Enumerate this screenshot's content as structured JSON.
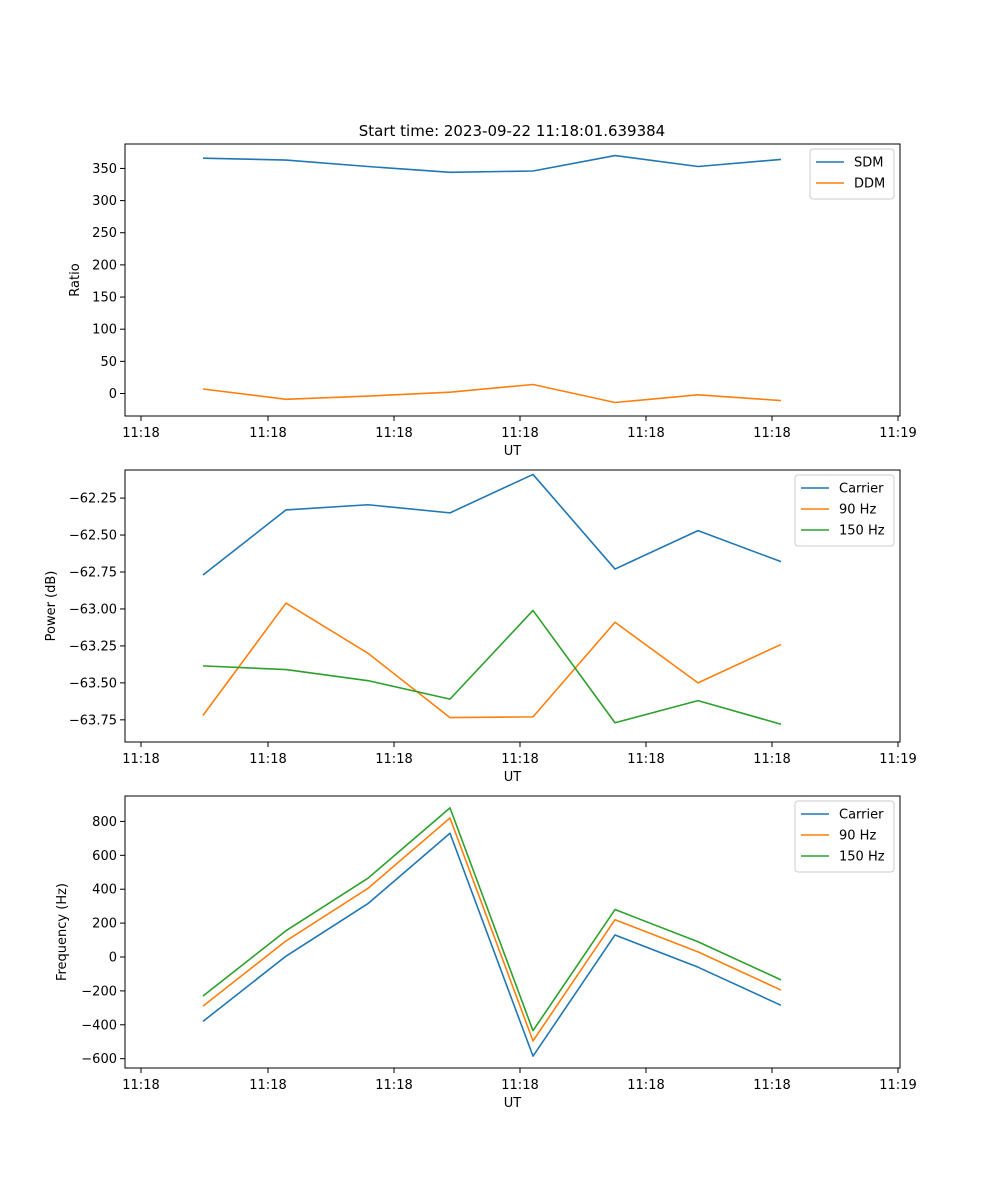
{
  "title": "Start time: 2023-09-22 11:18:01.639384",
  "chart_data": [
    {
      "type": "line",
      "title": "Start time: 2023-09-22 11:18:01.639384",
      "xlabel": "UT",
      "ylabel": "Ratio",
      "x_tick_labels": [
        "11:18",
        "11:18",
        "11:18",
        "11:18",
        "11:18",
        "11:18",
        "11:19"
      ],
      "y_ticks": [
        0,
        50,
        100,
        150,
        200,
        250,
        300,
        350
      ],
      "ylim": [
        -35,
        388
      ],
      "legend_position": "upper right",
      "series": [
        {
          "name": "SDM",
          "color": "#1f77b4",
          "values": [
            366,
            363,
            353,
            344,
            346,
            370,
            353,
            364
          ]
        },
        {
          "name": "DDM",
          "color": "#ff7f0e",
          "values": [
            7,
            -9,
            -4,
            2,
            14,
            -14,
            -2,
            -11
          ]
        }
      ]
    },
    {
      "type": "line",
      "title": "",
      "xlabel": "UT",
      "ylabel": "Power (dB)",
      "x_tick_labels": [
        "11:18",
        "11:18",
        "11:18",
        "11:18",
        "11:18",
        "11:18",
        "11:19"
      ],
      "y_ticks": [
        -63.75,
        -63.5,
        -63.25,
        -63.0,
        -62.75,
        -62.5,
        -62.25
      ],
      "y_tick_labels": [
        "−63.75",
        "−63.50",
        "−63.25",
        "−63.00",
        "−62.75",
        "−62.50",
        "−62.25"
      ],
      "ylim": [
        -63.9,
        -62.06
      ],
      "legend_position": "upper right",
      "series": [
        {
          "name": "Carrier",
          "color": "#1f77b4",
          "values": [
            -62.77,
            -62.33,
            -62.295,
            -62.35,
            -62.09,
            -62.73,
            -62.47,
            -62.68
          ]
        },
        {
          "name": "90 Hz",
          "color": "#ff7f0e",
          "values": [
            -63.72,
            -62.96,
            -63.3,
            -63.735,
            -63.73,
            -63.09,
            -63.5,
            -63.24
          ]
        },
        {
          "name": "150 Hz",
          "color": "#2ca02c",
          "values": [
            -63.385,
            -63.41,
            -63.485,
            -63.61,
            -63.01,
            -63.77,
            -63.62,
            -63.78
          ]
        }
      ]
    },
    {
      "type": "line",
      "title": "",
      "xlabel": "UT",
      "ylabel": "Frequency (Hz)",
      "x_tick_labels": [
        "11:18",
        "11:18",
        "11:18",
        "11:18",
        "11:18",
        "11:18",
        "11:19"
      ],
      "y_ticks": [
        -600,
        -400,
        -200,
        0,
        200,
        400,
        600,
        800
      ],
      "y_tick_labels": [
        "−600",
        "−400",
        "−200",
        "0",
        "200",
        "400",
        "600",
        "800"
      ],
      "ylim": [
        -655,
        950
      ],
      "legend_position": "upper right",
      "series": [
        {
          "name": "Carrier",
          "color": "#1f77b4",
          "values": [
            -380,
            5,
            315,
            730,
            -585,
            130,
            -60,
            -285
          ]
        },
        {
          "name": "90 Hz",
          "color": "#ff7f0e",
          "values": [
            -290,
            95,
            405,
            820,
            -495,
            220,
            30,
            -195
          ]
        },
        {
          "name": "150 Hz",
          "color": "#2ca02c",
          "values": [
            -230,
            155,
            465,
            880,
            -435,
            280,
            90,
            -135
          ]
        }
      ]
    }
  ]
}
